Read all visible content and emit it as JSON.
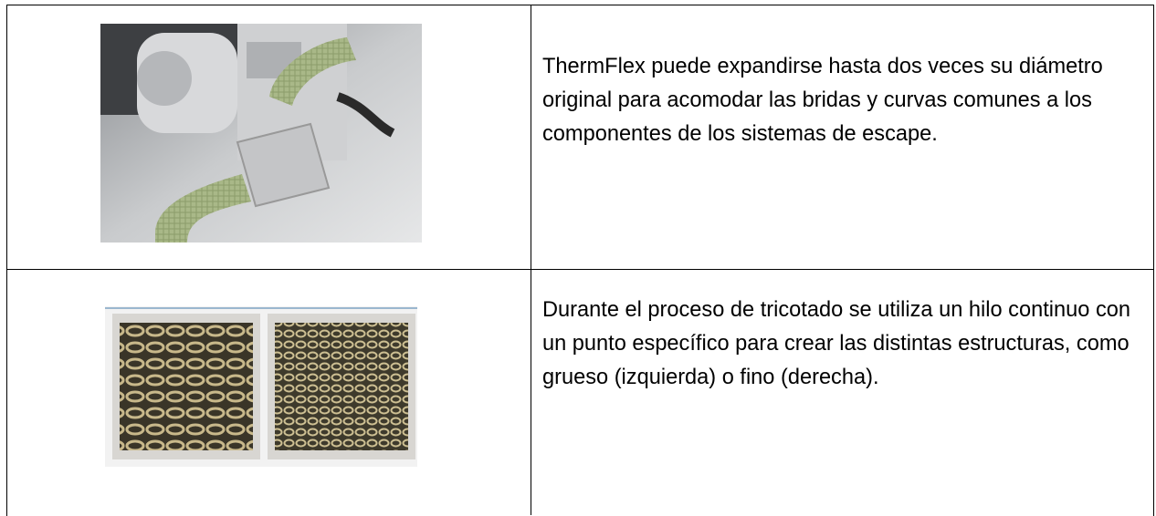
{
  "table": {
    "rows": [
      {
        "text": "ThermFlex puede expandirse hasta dos veces su diámetro original para acomodar las bridas y curvas comunes a los componentes de los sistemas de escape."
      },
      {
        "text": "Durante el proceso de tricotado se utiliza un hilo continuo con un punto específico para crear las distintas estructuras, como grueso (izquierda) o fino (derecha)."
      }
    ]
  }
}
